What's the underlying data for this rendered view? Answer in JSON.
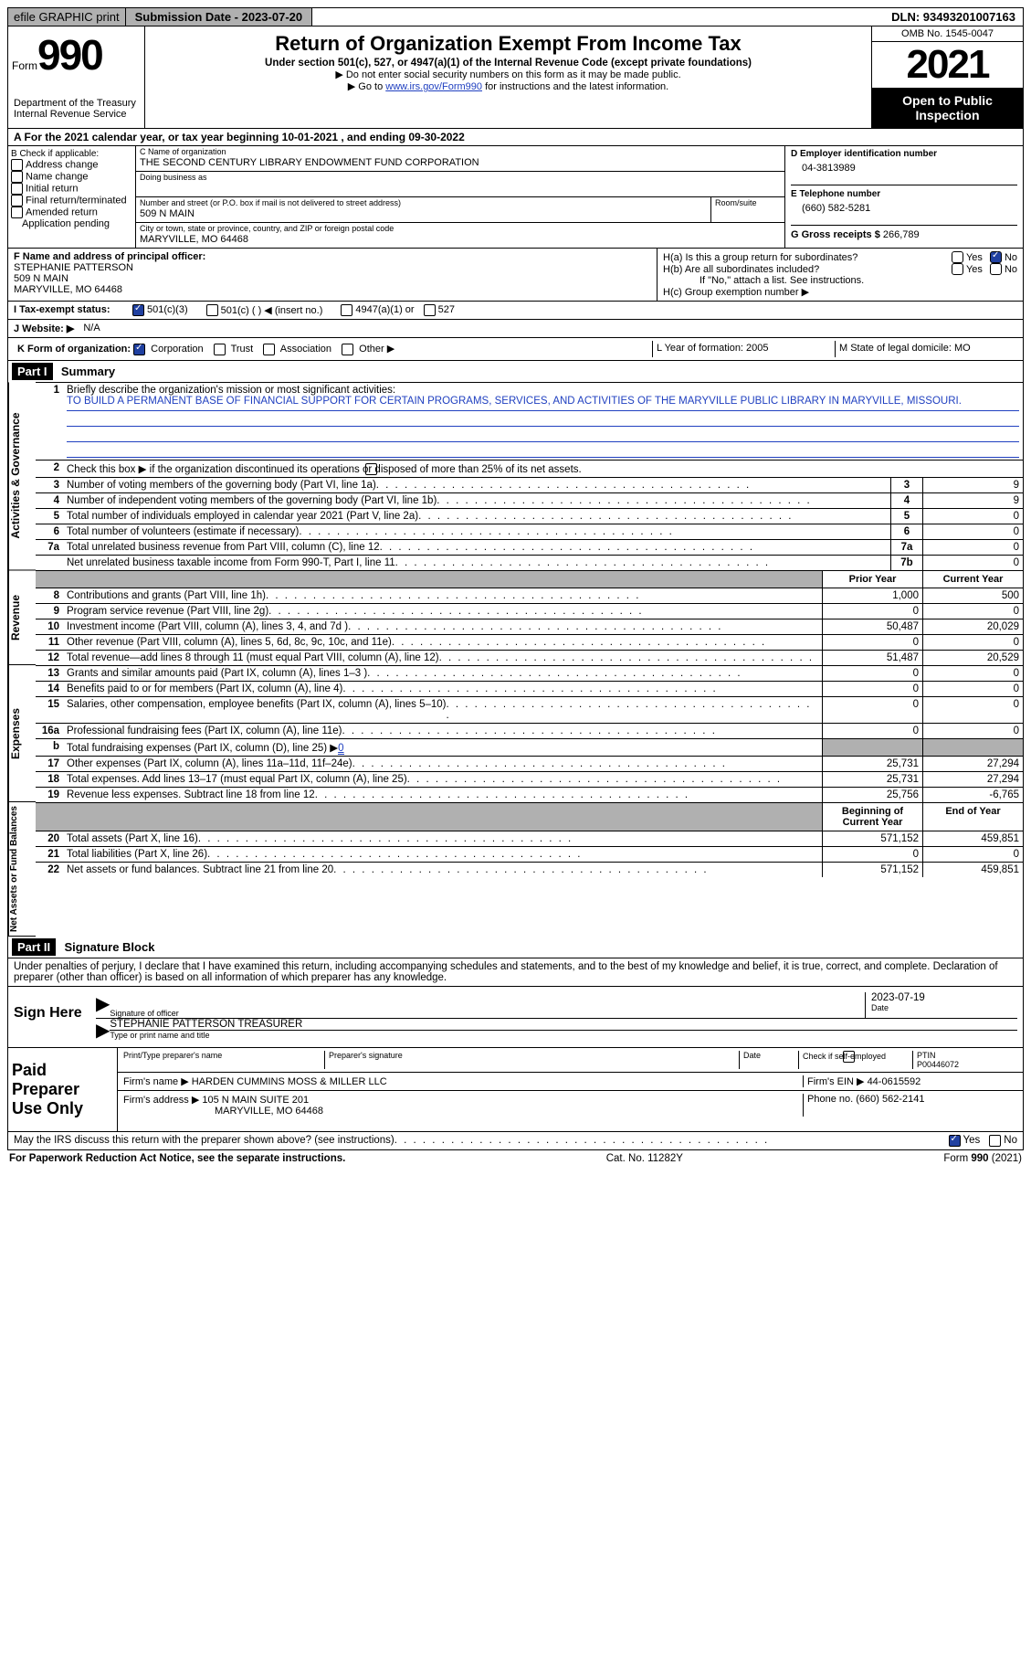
{
  "topbar": {
    "efile": "efile GRAPHIC print",
    "submission": "Submission Date - 2023-07-20",
    "dln": "DLN: 93493201007163"
  },
  "header": {
    "form_word": "Form",
    "form_num": "990",
    "dept": "Department of the Treasury\nInternal Revenue Service",
    "title": "Return of Organization Exempt From Income Tax",
    "sub1": "Under section 501(c), 527, or 4947(a)(1) of the Internal Revenue Code (except private foundations)",
    "sub2": "▶ Do not enter social security numbers on this form as it may be made public.",
    "sub3_pre": "▶ Go to ",
    "sub3_link": "www.irs.gov/Form990",
    "sub3_post": " for instructions and the latest information.",
    "omb": "OMB No. 1545-0047",
    "year": "2021",
    "open": "Open to Public Inspection"
  },
  "cal_year": "A  For the 2021 calendar year, or tax year beginning 10-01-2021    , and ending 09-30-2022",
  "box_b": {
    "label": "B Check if applicable:",
    "items": [
      "Address change",
      "Name change",
      "Initial return",
      "Final return/terminated",
      "Amended return",
      "Application pending"
    ]
  },
  "box_c": {
    "name_label": "C Name of organization",
    "name": "THE SECOND CENTURY LIBRARY ENDOWMENT FUND CORPORATION",
    "dba_label": "Doing business as",
    "dba": "",
    "street_label": "Number and street (or P.O. box if mail is not delivered to street address)",
    "room_label": "Room/suite",
    "street": "509 N MAIN",
    "city_label": "City or town, state or province, country, and ZIP or foreign postal code",
    "city": "MARYVILLE, MO  64468"
  },
  "box_d": {
    "ein_label": "D Employer identification number",
    "ein": "04-3813989",
    "phone_label": "E Telephone number",
    "phone": "(660) 582-5281",
    "gross_label": "G Gross receipts $",
    "gross": "266,789"
  },
  "box_f": {
    "label": "F Name and address of principal officer:",
    "name": "STEPHANIE PATTERSON",
    "street": "509 N MAIN",
    "city": "MARYVILLE, MO  64468"
  },
  "box_h": {
    "a": "H(a)  Is this a group return for subordinates?",
    "b": "H(b)  Are all subordinates included?",
    "b_note": "If \"No,\" attach a list. See instructions.",
    "c": "H(c)  Group exemption number ▶",
    "yes": "Yes",
    "no": "No"
  },
  "status": {
    "label": "I   Tax-exempt status:",
    "opt1": "501(c)(3)",
    "opt2": "501(c) (  ) ◀ (insert no.)",
    "opt3": "4947(a)(1) or",
    "opt4": "527"
  },
  "website": {
    "label": "J  Website: ▶",
    "value": "N/A"
  },
  "box_k": {
    "label": "K Form of organization:",
    "opts": [
      "Corporation",
      "Trust",
      "Association",
      "Other ▶"
    ],
    "l": "L Year of formation: 2005",
    "m": "M State of legal domicile: MO"
  },
  "part1": {
    "header": "Part I",
    "title": "Summary",
    "mission_label": "Briefly describe the organization's mission or most significant activities:",
    "mission": "TO BUILD A PERMANENT BASE OF FINANCIAL SUPPORT FOR CERTAIN PROGRAMS, SERVICES, AND ACTIVITIES OF THE MARYVILLE PUBLIC LIBRARY IN MARYVILLE, MISSOURI.",
    "line2": "Check this box ▶       if the organization discontinued its operations or disposed of more than 25% of its net assets.",
    "side_gov": "Activities & Governance",
    "side_rev": "Revenue",
    "side_exp": "Expenses",
    "side_net": "Net Assets or Fund Balances",
    "col_prior": "Prior Year",
    "col_current": "Current Year",
    "col_begin": "Beginning of Current Year",
    "col_end": "End of Year",
    "rows_gov": [
      {
        "n": "3",
        "d": "Number of voting members of the governing body (Part VI, line 1a)",
        "box": "3",
        "v": "9"
      },
      {
        "n": "4",
        "d": "Number of independent voting members of the governing body (Part VI, line 1b)",
        "box": "4",
        "v": "9"
      },
      {
        "n": "5",
        "d": "Total number of individuals employed in calendar year 2021 (Part V, line 2a)",
        "box": "5",
        "v": "0"
      },
      {
        "n": "6",
        "d": "Total number of volunteers (estimate if necessary)",
        "box": "6",
        "v": "0"
      },
      {
        "n": "7a",
        "d": "Total unrelated business revenue from Part VIII, column (C), line 12",
        "box": "7a",
        "v": "0"
      },
      {
        "n": "",
        "d": "Net unrelated business taxable income from Form 990-T, Part I, line 11",
        "box": "7b",
        "v": "0"
      }
    ],
    "rows_rev": [
      {
        "n": "8",
        "d": "Contributions and grants (Part VIII, line 1h)",
        "p": "1,000",
        "c": "500"
      },
      {
        "n": "9",
        "d": "Program service revenue (Part VIII, line 2g)",
        "p": "0",
        "c": "0"
      },
      {
        "n": "10",
        "d": "Investment income (Part VIII, column (A), lines 3, 4, and 7d )",
        "p": "50,487",
        "c": "20,029"
      },
      {
        "n": "11",
        "d": "Other revenue (Part VIII, column (A), lines 5, 6d, 8c, 9c, 10c, and 11e)",
        "p": "0",
        "c": "0"
      },
      {
        "n": "12",
        "d": "Total revenue—add lines 8 through 11 (must equal Part VIII, column (A), line 12)",
        "p": "51,487",
        "c": "20,529"
      }
    ],
    "rows_exp": [
      {
        "n": "13",
        "d": "Grants and similar amounts paid (Part IX, column (A), lines 1–3 )",
        "p": "0",
        "c": "0"
      },
      {
        "n": "14",
        "d": "Benefits paid to or for members (Part IX, column (A), line 4)",
        "p": "0",
        "c": "0"
      },
      {
        "n": "15",
        "d": "Salaries, other compensation, employee benefits (Part IX, column (A), lines 5–10)",
        "p": "0",
        "c": "0"
      },
      {
        "n": "16a",
        "d": "Professional fundraising fees (Part IX, column (A), line 11e)",
        "p": "0",
        "c": "0"
      }
    ],
    "line_b": {
      "n": "b",
      "d": "Total fundraising expenses (Part IX, column (D), line 25) ▶",
      "v": "0"
    },
    "rows_exp2": [
      {
        "n": "17",
        "d": "Other expenses (Part IX, column (A), lines 11a–11d, 11f–24e)",
        "p": "25,731",
        "c": "27,294"
      },
      {
        "n": "18",
        "d": "Total expenses. Add lines 13–17 (must equal Part IX, column (A), line 25)",
        "p": "25,731",
        "c": "27,294"
      },
      {
        "n": "19",
        "d": "Revenue less expenses. Subtract line 18 from line 12",
        "p": "25,756",
        "c": "-6,765"
      }
    ],
    "rows_net": [
      {
        "n": "20",
        "d": "Total assets (Part X, line 16)",
        "p": "571,152",
        "c": "459,851"
      },
      {
        "n": "21",
        "d": "Total liabilities (Part X, line 26)",
        "p": "0",
        "c": "0"
      },
      {
        "n": "22",
        "d": "Net assets or fund balances. Subtract line 21 from line 20",
        "p": "571,152",
        "c": "459,851"
      }
    ]
  },
  "part2": {
    "header": "Part II",
    "title": "Signature Block",
    "decl": "Under penalties of perjury, I declare that I have examined this return, including accompanying schedules and statements, and to the best of my knowledge and belief, it is true, correct, and complete. Declaration of preparer (other than officer) is based on all information of which preparer has any knowledge.",
    "sign_here": "Sign Here",
    "sig_label": "Signature of officer",
    "sig_date": "2023-07-19",
    "date_label": "Date",
    "name_title": "STEPHANIE PATTERSON  TREASURER",
    "name_label": "Type or print name and title",
    "paid": "Paid Preparer Use Only",
    "prep_name_label": "Print/Type preparer's name",
    "prep_sig_label": "Preparer's signature",
    "prep_date_label": "Date",
    "check_self": "Check         if self-employed",
    "ptin_label": "PTIN",
    "ptin": "P00446072",
    "firm_name_label": "Firm's name    ▶",
    "firm_name": "HARDEN CUMMINS MOSS & MILLER LLC",
    "firm_ein_label": "Firm's EIN ▶",
    "firm_ein": "44-0615592",
    "firm_addr_label": "Firm's address ▶",
    "firm_addr1": "105 N MAIN SUITE 201",
    "firm_addr2": "MARYVILLE, MO  64468",
    "firm_phone_label": "Phone no.",
    "firm_phone": "(660) 562-2141",
    "discuss": "May the IRS discuss this return with the preparer shown above? (see instructions)"
  },
  "footer": {
    "left": "For Paperwork Reduction Act Notice, see the separate instructions.",
    "mid": "Cat. No. 11282Y",
    "right": "Form 990 (2021)"
  }
}
